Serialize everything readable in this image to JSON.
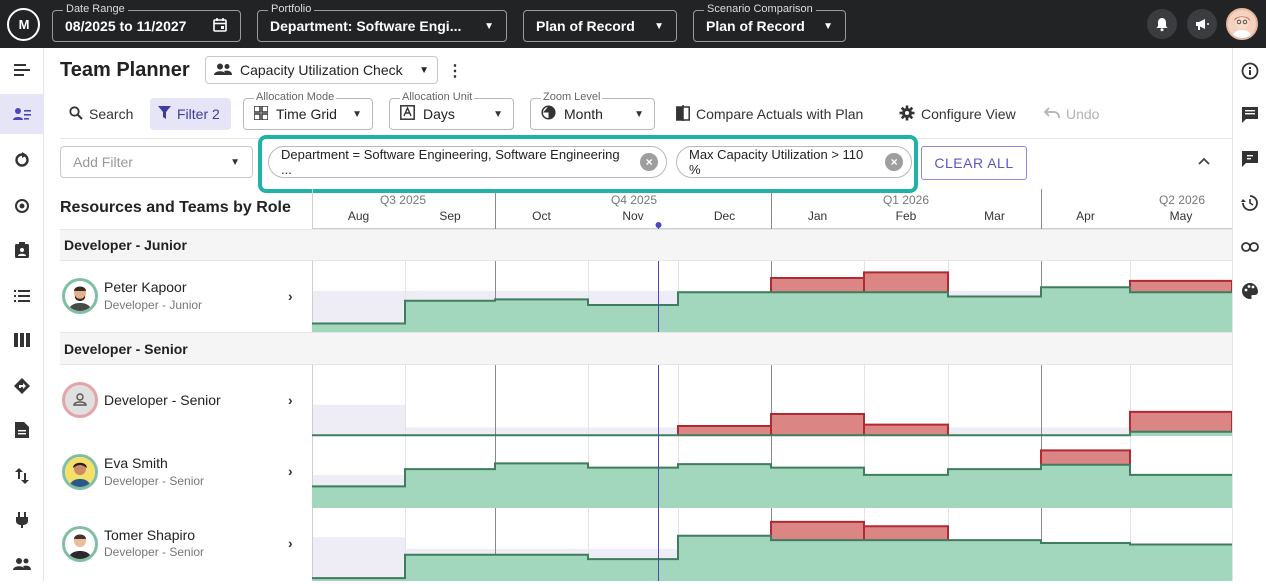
{
  "topbar": {
    "logo": "M",
    "date_range": {
      "label": "Date Range",
      "value": "08/2025 to 11/2027"
    },
    "portfolio": {
      "label": "Portfolio",
      "value": "Department: Software Engi..."
    },
    "plan": {
      "value": "Plan of Record"
    },
    "scenario": {
      "label": "Scenario Comparison",
      "value": "Plan of Record"
    }
  },
  "header": {
    "title": "Team Planner",
    "view_name": "Capacity Utilization Check"
  },
  "toolbar": {
    "search": "Search",
    "filter": "Filter 2",
    "allocation_mode": {
      "label": "Allocation Mode",
      "value": "Time Grid"
    },
    "allocation_unit": {
      "label": "Allocation Unit",
      "value": "Days"
    },
    "zoom_level": {
      "label": "Zoom Level",
      "value": "Month"
    },
    "compare": "Compare Actuals with Plan",
    "configure": "Configure View",
    "undo": "Undo"
  },
  "filters": {
    "add_placeholder": "Add Filter",
    "chips": [
      "Department = Software Engineering, Software Engineering ...",
      "Max Capacity Utilization > 110 %"
    ],
    "clear_all": "CLEAR ALL"
  },
  "grid": {
    "title": "Resources and Teams by Role",
    "quarters": [
      "Q3 2025",
      "Q4 2025",
      "Q1 2026",
      "Q2 2026"
    ],
    "months": [
      "Aug",
      "Sep",
      "Oct",
      "Nov",
      "Dec",
      "Jan",
      "Feb",
      "Mar",
      "Apr",
      "May"
    ],
    "groups": [
      "Developer - Junior",
      "Developer - Senior"
    ],
    "resources": [
      {
        "name": "Peter Kapoor",
        "role": "Developer - Junior"
      },
      {
        "name": "Developer - Senior",
        "role": ""
      },
      {
        "name": "Eva Smith",
        "role": "Developer - Senior"
      },
      {
        "name": "Tomer Shapiro",
        "role": "Developer - Senior"
      }
    ]
  },
  "colors": {
    "capacity_fill": "#a2d6bd",
    "capacity_line": "#3e7d5d",
    "over_fill": "#db8584",
    "over_line": "#b02a31",
    "available_fill": "#eeedf6",
    "highlight": "#1fb3a8",
    "accent": "#5b56c7"
  }
}
